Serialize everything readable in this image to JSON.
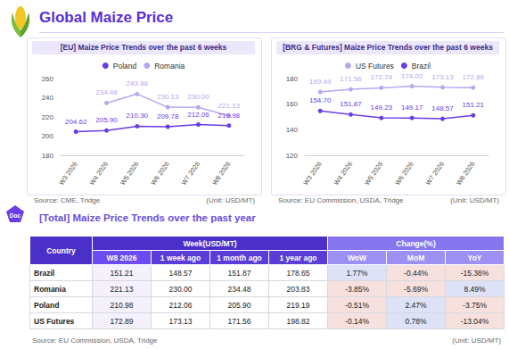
{
  "header": {
    "title": "Global Maize Price"
  },
  "chart_data": [
    {
      "type": "line",
      "title": "[EU] Maize Price Trends over the past 6 weeks",
      "categories": [
        "W3 2026",
        "W4 2026",
        "W5 2026",
        "W6 2026",
        "W7 2026",
        "W8 2026"
      ],
      "series": [
        {
          "name": "Poland",
          "color": "#6a3de8",
          "values": [
            204.62,
            205.9,
            210.3,
            209.78,
            212.06,
            210.98
          ],
          "value_labels": [
            "204.62",
            "205.90",
            "210.30",
            "209.78",
            "212.06",
            "210.98"
          ]
        },
        {
          "name": "Romania",
          "color": "#b9a6f2",
          "values": [
            null,
            234.48,
            243.88,
            230.13,
            230.0,
            221.13
          ],
          "value_labels": [
            null,
            "234.48",
            "243.88",
            "230.13",
            "230.00",
            "221.13"
          ]
        }
      ],
      "ylim": [
        180,
        260
      ],
      "yticks": [
        180,
        200,
        220,
        240,
        260
      ],
      "grid": false,
      "legend": "top",
      "data_labels": true,
      "source": "Source: CME, Tridge",
      "unit": "(Unit: USD/MT)"
    },
    {
      "type": "line",
      "title": "[BRG & Futures] Maize Price Trends over the past 6 weeks",
      "categories": [
        "W3 2026",
        "W4 2026",
        "W5 2026",
        "W6 2026",
        "W7 2026",
        "W8 2026"
      ],
      "series": [
        {
          "name": "US Futures",
          "color": "#b9a6f2",
          "values": [
            169.49,
            171.56,
            172.74,
            174.02,
            173.13,
            172.89
          ],
          "value_labels": [
            "169.49",
            "171.56",
            "172.74",
            "174.02",
            "173.13",
            "172.89"
          ]
        },
        {
          "name": "Brazil",
          "color": "#6a3de8",
          "values": [
            154.7,
            151.87,
            149.23,
            149.17,
            148.57,
            151.21
          ],
          "value_labels": [
            "154.70",
            "151.87",
            "149.23",
            "149.17",
            "148.57",
            "151.21"
          ]
        }
      ],
      "ylim": [
        120,
        180
      ],
      "yticks": [
        120,
        140,
        160,
        180
      ],
      "grid": false,
      "legend": "top",
      "data_labels": true,
      "source": "Source: EU Commission, USDA, Tridge",
      "unit": "(Unit: USD/MT)"
    }
  ],
  "section": {
    "badge": "Doc",
    "title": "[Total] Maize Price Trends over the past year"
  },
  "table": {
    "row_header": "Country",
    "groups": [
      {
        "label": "Week(USD/MT)",
        "columns": [
          "W8 2026",
          "1 week ago",
          "1 month ago",
          "1 year ago"
        ]
      },
      {
        "label": "Change(%)",
        "columns": [
          "WoW",
          "MoM",
          "YoY"
        ]
      }
    ],
    "rows": [
      [
        "Brazil",
        "151.21",
        "148.57",
        "151.87",
        "178.65",
        "1.77%",
        "-0.44%",
        "-15.36%"
      ],
      [
        "Romania",
        "221.13",
        "230.00",
        "234.48",
        "203.83",
        "-3.85%",
        "-5.69%",
        "8.49%"
      ],
      [
        "Poland",
        "210.98",
        "212.06",
        "205.90",
        "219.19",
        "-0.51%",
        "2.47%",
        "-3.75%"
      ],
      [
        "US Futures",
        "172.89",
        "173.13",
        "171.56",
        "198.82",
        "-0.14%",
        "0.78%",
        "-13.04%"
      ]
    ]
  },
  "footer": {
    "source": "Source: EU Commission, USDA, Tridge",
    "unit": "(Unit: USD/MT)"
  }
}
